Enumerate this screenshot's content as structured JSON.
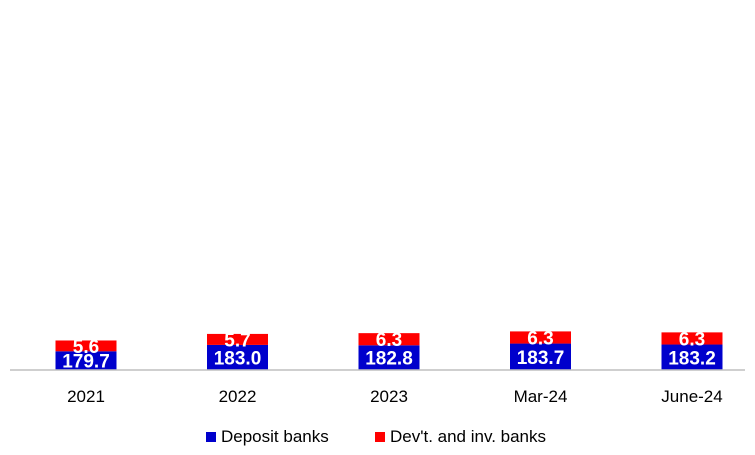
{
  "chart_data": {
    "type": "bar",
    "stacked": true,
    "categories": [
      "2021",
      "2022",
      "2023",
      "Mar-24",
      "June-24"
    ],
    "series": [
      {
        "name": "Deposit banks",
        "color": "#0000CC",
        "values": [
          179.7,
          183.0,
          182.8,
          183.7,
          183.2
        ],
        "labels": [
          "179.7",
          "183.0",
          "182.8",
          "183.7",
          "183.2"
        ]
      },
      {
        "name": "Dev't. and inv. banks",
        "color": "#FF0000",
        "values": [
          5.6,
          5.7,
          6.3,
          6.3,
          6.3
        ],
        "labels": [
          "5.6",
          "5.7",
          "6.3",
          "6.3",
          "6.3"
        ]
      }
    ],
    "axis_color": "#BFBFBF",
    "grid": false,
    "legend_position": "bottom",
    "data_label_color": "#FFFFFF"
  }
}
